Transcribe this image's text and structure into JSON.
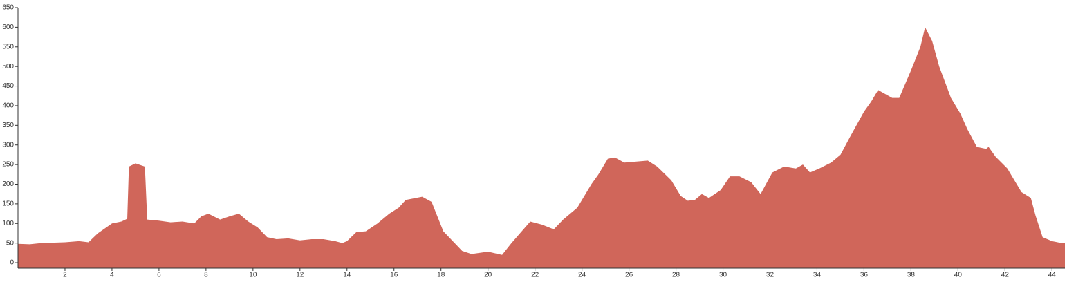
{
  "chart_data": {
    "type": "area",
    "x": [
      0,
      0.5,
      1,
      2,
      2.6,
      3,
      3.4,
      4,
      4.4,
      4.65,
      4.72,
      5,
      5.4,
      5.5,
      6,
      6.5,
      7,
      7.5,
      7.8,
      8.1,
      8.6,
      9,
      9.4,
      9.8,
      10.2,
      10.6,
      11,
      11.5,
      12,
      12.5,
      13,
      13.5,
      13.8,
      14,
      14.4,
      14.8,
      15.3,
      15.8,
      16.2,
      16.5,
      17.2,
      17.6,
      18.1,
      18.9,
      19.3,
      20,
      20.6,
      21,
      21.8,
      22.3,
      22.8,
      23.2,
      23.8,
      24.4,
      24.7,
      25.1,
      25.4,
      25.8,
      26.8,
      27.2,
      27.8,
      28.2,
      28.5,
      28.8,
      29.1,
      29.4,
      29.9,
      30.3,
      30.7,
      31.2,
      31.6,
      32.1,
      32.6,
      33.1,
      33.4,
      33.7,
      34.1,
      34.6,
      35.0,
      35.4,
      36.0,
      36.3,
      36.6,
      37.2,
      37.5,
      38.0,
      38.4,
      38.6,
      38.9,
      39.2,
      39.7,
      40.1,
      40.4,
      40.8,
      41.2,
      41.3,
      41.6,
      42.1,
      42.4,
      42.7,
      43.1,
      43.3,
      43.6,
      44.0,
      44.4,
      44.55
    ],
    "values": [
      48,
      47,
      50,
      52,
      55,
      52,
      75,
      100,
      105,
      112,
      245,
      253,
      245,
      110,
      107,
      103,
      105,
      100,
      118,
      125,
      110,
      118,
      125,
      105,
      90,
      65,
      60,
      62,
      57,
      60,
      60,
      55,
      50,
      55,
      78,
      80,
      100,
      125,
      140,
      160,
      168,
      155,
      80,
      30,
      22,
      28,
      20,
      50,
      105,
      97,
      85,
      110,
      140,
      200,
      225,
      265,
      268,
      255,
      260,
      245,
      210,
      170,
      158,
      160,
      175,
      165,
      185,
      220,
      220,
      205,
      175,
      230,
      245,
      240,
      250,
      230,
      240,
      255,
      275,
      320,
      385,
      410,
      440,
      420,
      420,
      490,
      550,
      600,
      565,
      500,
      420,
      380,
      340,
      295,
      290,
      295,
      270,
      240,
      210,
      180,
      165,
      120,
      65,
      55,
      50,
      50
    ],
    "color": "#d0665a",
    "xlim": [
      0,
      44.55
    ],
    "xticks": [
      2,
      4,
      6,
      8,
      10,
      12,
      14,
      16,
      18,
      20,
      22,
      24,
      26,
      28,
      30,
      32,
      34,
      36,
      38,
      40,
      42,
      44
    ],
    "ylim": [
      -14,
      650
    ],
    "yticks": [
      0,
      50,
      100,
      150,
      200,
      250,
      300,
      350,
      400,
      450,
      500,
      550,
      600,
      650
    ]
  }
}
